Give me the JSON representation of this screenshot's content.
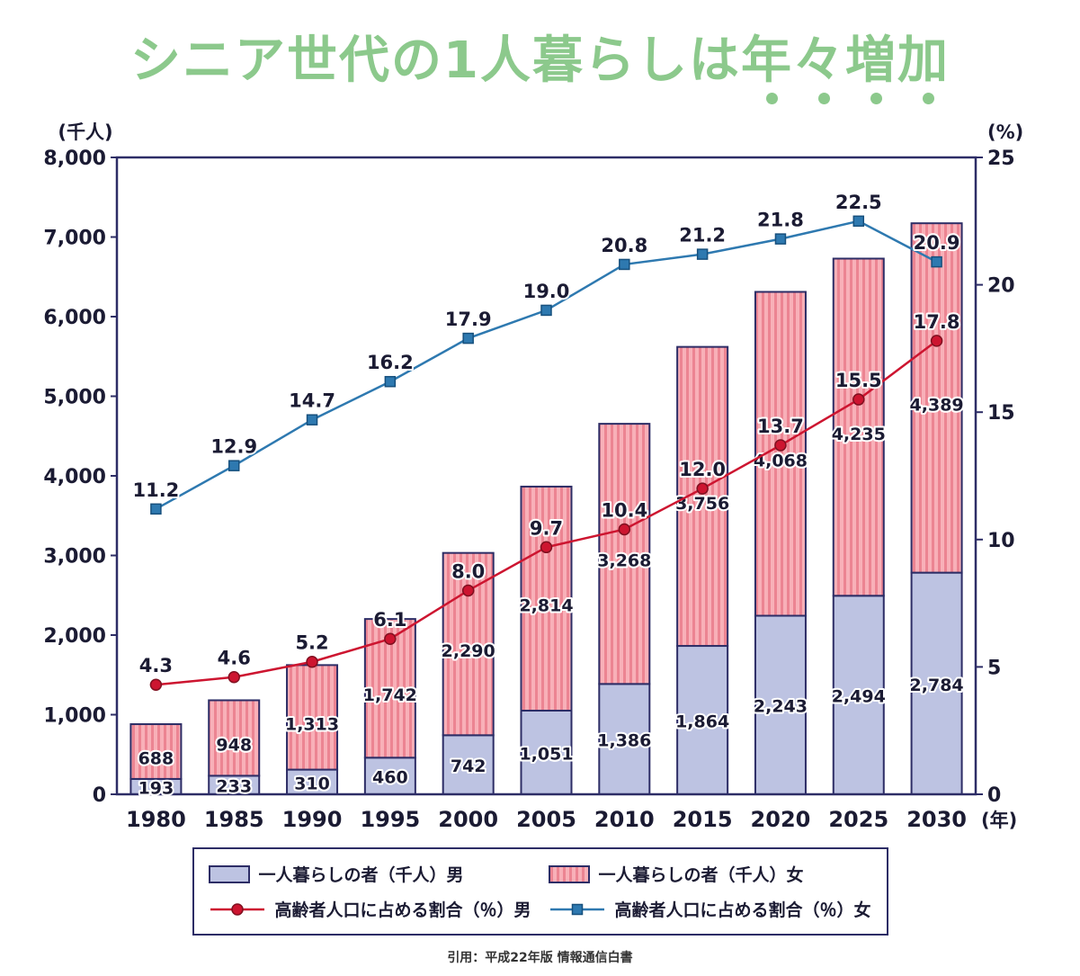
{
  "title": {
    "text": "シニア世代の1人暮らしは年々増加",
    "emphasis_dots": 4
  },
  "footer": "引用：平成22年版 情報通信白書",
  "theme": {
    "title_color": "#8cc98c",
    "axis_color": "#2d2d66",
    "text_color": "#1b1b33",
    "background": "#ffffff"
  },
  "chart_data": {
    "type": "combo-stacked-bar-line",
    "categories": [
      "1980",
      "1985",
      "1990",
      "1995",
      "2000",
      "2005",
      "2010",
      "2015",
      "2020",
      "2025",
      "2030"
    ],
    "x_axis": {
      "unit": "(年)"
    },
    "left_axis": {
      "unit": "(千人)",
      "min": 0,
      "max": 8000,
      "step": 1000
    },
    "right_axis": {
      "unit": "(%)",
      "min": 0,
      "max": 25,
      "step": 5
    },
    "bar_series": [
      {
        "name": "一人暮らしの者（千人）男",
        "color": "#bdc3e2",
        "values": [
          193,
          233,
          310,
          460,
          742,
          1051,
          1386,
          1864,
          2243,
          2494,
          2784
        ]
      },
      {
        "name": "一人暮らしの者（千人）女",
        "color": "#f8b0b8",
        "stripe_color": "#ec8492",
        "values": [
          688,
          948,
          1313,
          1742,
          2290,
          2814,
          3268,
          3756,
          4068,
          4235,
          4389
        ]
      }
    ],
    "line_series": [
      {
        "name": "高齢者人口に占める割合（％）男",
        "color": "#cd1530",
        "edge_color": "#801020",
        "marker": "circle",
        "values": [
          4.3,
          4.6,
          5.2,
          6.1,
          8.0,
          9.7,
          10.4,
          12.0,
          13.7,
          15.5,
          17.8
        ]
      },
      {
        "name": "高齢者人口に占める割合（％）女",
        "color": "#2e79b0",
        "edge_color": "#17507d",
        "marker": "square",
        "values": [
          11.2,
          12.9,
          14.7,
          16.2,
          17.9,
          19.0,
          20.8,
          21.2,
          21.8,
          22.5,
          20.9
        ]
      }
    ],
    "legend_position": "bottom",
    "grid": false
  }
}
